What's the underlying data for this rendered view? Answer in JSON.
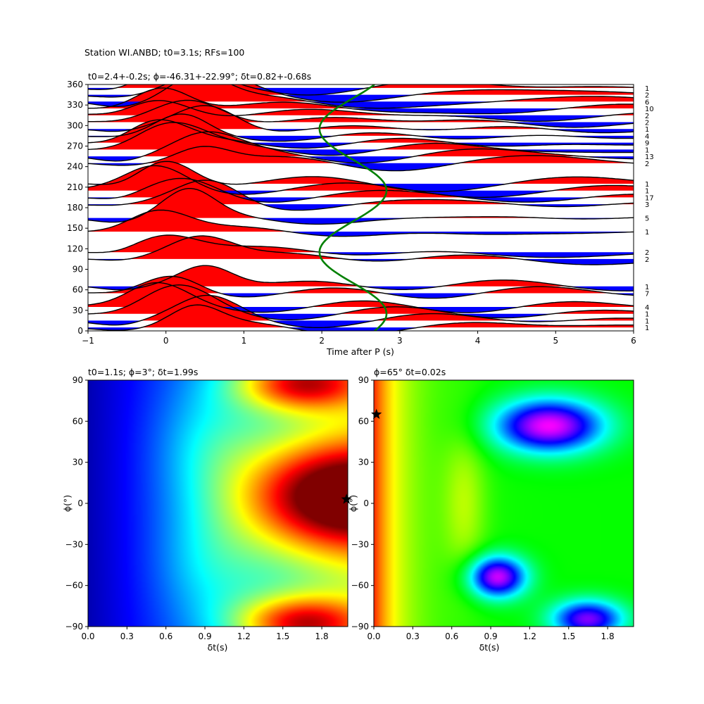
{
  "figure_title": "Station WI.ANBD; t0=3.1s; RFs=100",
  "chart_data": [
    {
      "type": "wiggle",
      "title": "t0=2.4+-0.2s; ϕ=-46.31+-22.99°; δt=0.82+-0.68s",
      "xlabel": "Time after P (s)",
      "ylabel": "",
      "xlim": [
        -1,
        6
      ],
      "ylim": [
        0,
        360
      ],
      "xticks": [
        "−1",
        "0",
        "1",
        "2",
        "3",
        "4",
        "5",
        "6"
      ],
      "yticks": [
        "0",
        "30",
        "60",
        "90",
        "120",
        "150",
        "180",
        "210",
        "240",
        "270",
        "300",
        "330",
        "360"
      ],
      "positive_fill": "#ff0000",
      "negative_fill": "#0000ff",
      "curve_color": "#008000",
      "traces": [
        {
          "baz": 5,
          "count": "1"
        },
        {
          "baz": 15,
          "count": "1"
        },
        {
          "baz": 25,
          "count": "1"
        },
        {
          "baz": 35,
          "count": "4"
        },
        {
          "baz": 55,
          "count": "7"
        },
        {
          "baz": 65,
          "count": "1"
        },
        {
          "baz": 105,
          "count": "2"
        },
        {
          "baz": 115,
          "count": "2"
        },
        {
          "baz": 145,
          "count": "1"
        },
        {
          "baz": 165,
          "count": "5"
        },
        {
          "baz": 185,
          "count": "3"
        },
        {
          "baz": 195,
          "count": "17"
        },
        {
          "baz": 205,
          "count": "1"
        },
        {
          "baz": 215,
          "count": "1"
        },
        {
          "baz": 245,
          "count": "2"
        },
        {
          "baz": 255,
          "count": "13"
        },
        {
          "baz": 265,
          "count": "1"
        },
        {
          "baz": 275,
          "count": "9"
        },
        {
          "baz": 285,
          "count": "4"
        },
        {
          "baz": 295,
          "count": "1"
        },
        {
          "baz": 305,
          "count": "2"
        },
        {
          "baz": 315,
          "count": "2"
        },
        {
          "baz": 325,
          "count": "10"
        },
        {
          "baz": 335,
          "count": "6"
        },
        {
          "baz": 345,
          "count": "2"
        },
        {
          "baz": 355,
          "count": "1"
        }
      ]
    },
    {
      "type": "heatmap",
      "title": "t0=1.1s; ϕ=3°; δt=1.99s",
      "xlabel": "δt(s)",
      "ylabel": "ϕ(°)",
      "xlim": [
        0,
        2
      ],
      "ylim": [
        -90,
        90
      ],
      "xticks": [
        "0.0",
        "0.3",
        "0.6",
        "0.9",
        "1.2",
        "1.5",
        "1.8"
      ],
      "yticks": [
        "−90",
        "−60",
        "−30",
        "0",
        "30",
        "60",
        "90"
      ],
      "colormap": "jet",
      "best": {
        "dt": 1.99,
        "phi": 3
      }
    },
    {
      "type": "heatmap",
      "title": "ϕ=65° δt=0.02s",
      "xlabel": "δt(s)",
      "ylabel": "ϕ(°)",
      "xlim": [
        0,
        2
      ],
      "ylim": [
        -90,
        90
      ],
      "xticks": [
        "0.0",
        "0.3",
        "0.6",
        "0.9",
        "1.2",
        "1.5",
        "1.8"
      ],
      "yticks": [
        "−90",
        "−60",
        "−30",
        "0",
        "30",
        "60",
        "90"
      ],
      "colormap": "hsv",
      "best": {
        "dt": 0.02,
        "phi": 65
      }
    }
  ]
}
